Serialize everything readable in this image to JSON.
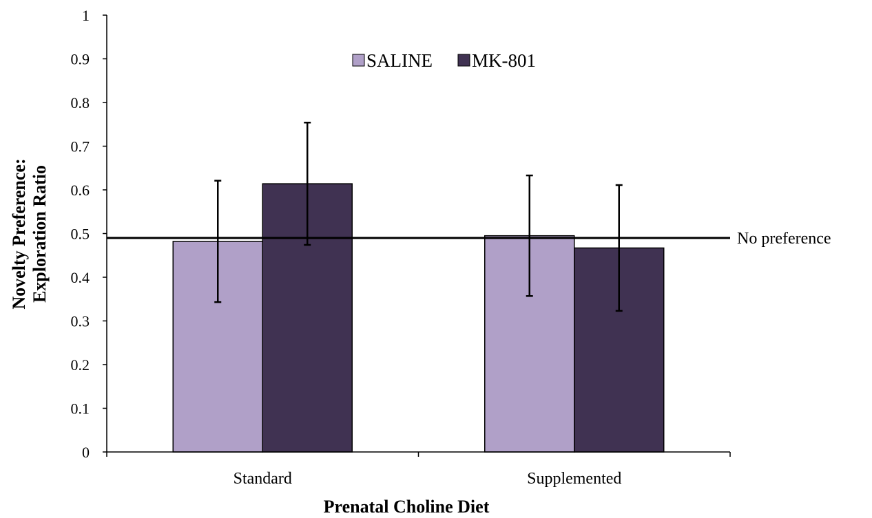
{
  "chart_data": {
    "type": "bar",
    "xlabel": "Prenatal Choline Diet",
    "ylabel_lines": [
      "Novelty Preference:",
      "Exploration Ratio"
    ],
    "categories": [
      "Standard",
      "Supplemented"
    ],
    "series": [
      {
        "name": "SALINE",
        "color": "#b0a0c8",
        "values": [
          0.482,
          0.495
        ],
        "errors": [
          0.139,
          0.138
        ]
      },
      {
        "name": "MK-801",
        "color": "#403252",
        "values": [
          0.614,
          0.467
        ],
        "errors": [
          0.14,
          0.144
        ]
      }
    ],
    "ylim": [
      0,
      1
    ],
    "yticks": [
      "0",
      "0.1",
      "0.2",
      "0.3",
      "0.4",
      "0.5",
      "0.6",
      "0.7",
      "0.8",
      "0.9",
      "1"
    ],
    "reference_line": {
      "value": 0.49,
      "label": "No preference"
    },
    "legend_position": "top-center",
    "grid": false
  }
}
